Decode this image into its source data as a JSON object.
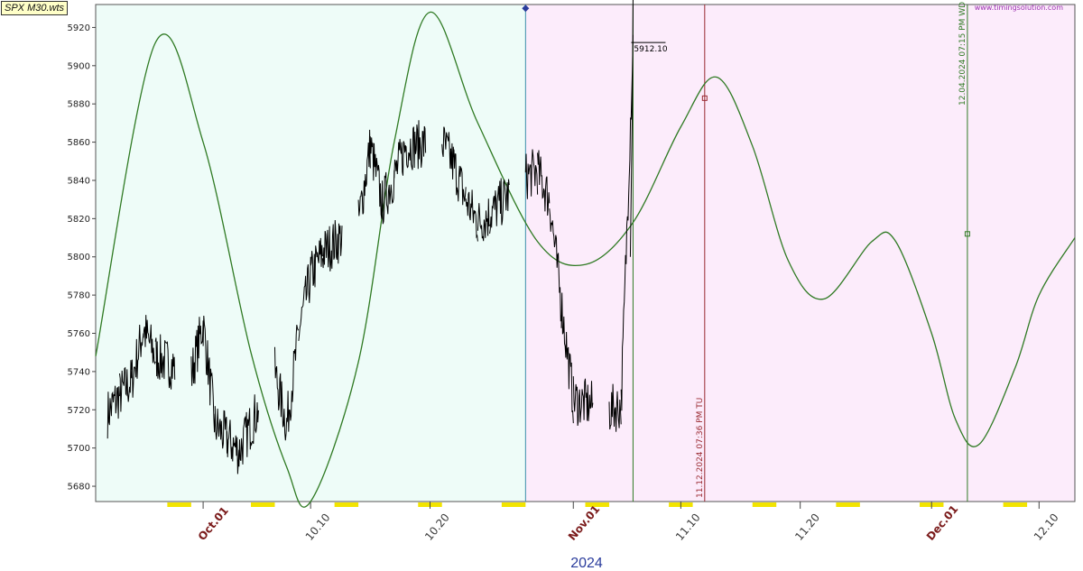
{
  "symbol_tag": "SPX M30.wts",
  "brand": "www.timingsolution.com",
  "colors": {
    "zone_past": "#eefcf8",
    "zone_future": "#fcecfb",
    "price": "#000000",
    "projection": "#2f7a23",
    "mark_red": "#9a2a32",
    "mark_green": "#2f7a23",
    "mark_teal": "#3a8ca8",
    "highlight": "#f2e400"
  },
  "chart_data": {
    "type": "line",
    "title": "",
    "xlabel": "2024",
    "ylabel": "",
    "ylim": [
      5672,
      5932
    ],
    "xlim": [
      "2024-09-22",
      "2024-12-13"
    ],
    "yticks": [
      5680,
      5700,
      5720,
      5740,
      5760,
      5780,
      5800,
      5820,
      5840,
      5860,
      5880,
      5900,
      5920
    ],
    "xticks": [
      {
        "date": "2024-10-01",
        "label": "Oct.01",
        "month": true
      },
      {
        "date": "2024-10-10",
        "label": "10.10",
        "month": false
      },
      {
        "date": "2024-10-20",
        "label": "10.20",
        "month": false
      },
      {
        "date": "2024-11-01",
        "label": "Nov.01",
        "month": true
      },
      {
        "date": "2024-11-10",
        "label": "11.10",
        "month": false
      },
      {
        "date": "2024-11-20",
        "label": "11.20",
        "month": false
      },
      {
        "date": "2024-12-01",
        "label": "Dec.01",
        "month": true
      },
      {
        "date": "2024-12-10",
        "label": "12.10",
        "month": false
      }
    ],
    "series": [
      {
        "kind": "price",
        "points": [
          [
            "2024-09-23",
            5718
          ],
          [
            "2024-09-24",
            5728
          ],
          [
            "2024-09-25",
            5735
          ],
          [
            "2024-09-26",
            5762
          ],
          [
            "2024-09-27",
            5748
          ],
          [
            "2024-09-30",
            5738
          ],
          [
            "2024-10-01",
            5765
          ],
          [
            "2024-10-02",
            5712
          ],
          [
            "2024-10-03",
            5705
          ],
          [
            "2024-10-04",
            5698
          ],
          [
            "2024-10-07",
            5740
          ],
          [
            "2024-10-08",
            5712
          ],
          [
            "2024-10-09",
            5760
          ],
          [
            "2024-10-10",
            5790
          ],
          [
            "2024-10-11",
            5802
          ],
          [
            "2024-10-14",
            5818
          ],
          [
            "2024-10-15",
            5858
          ],
          [
            "2024-10-16",
            5828
          ],
          [
            "2024-10-17",
            5842
          ],
          [
            "2024-10-18",
            5858
          ],
          [
            "2024-10-21",
            5860
          ],
          [
            "2024-10-22",
            5848
          ],
          [
            "2024-10-23",
            5830
          ],
          [
            "2024-10-24",
            5818
          ],
          [
            "2024-10-25",
            5822
          ],
          [
            "2024-10-28",
            5842
          ],
          [
            "2024-10-29",
            5845
          ],
          [
            "2024-10-30",
            5830
          ],
          [
            "2024-10-31",
            5775
          ],
          [
            "2024-11-01",
            5725
          ],
          [
            "2024-11-04",
            5720
          ],
          [
            "2024-11-05",
            5722
          ],
          [
            "2024-11-06",
            5912.1
          ]
        ]
      },
      {
        "kind": "projection",
        "points": [
          [
            "2024-09-22",
            5748
          ],
          [
            "2024-09-27",
            5912
          ],
          [
            "2024-10-01",
            5860
          ],
          [
            "2024-10-05",
            5750
          ],
          [
            "2024-10-08",
            5690
          ],
          [
            "2024-10-10",
            5672
          ],
          [
            "2024-10-14",
            5745
          ],
          [
            "2024-10-17",
            5860
          ],
          [
            "2024-10-20",
            5928
          ],
          [
            "2024-10-24",
            5870
          ],
          [
            "2024-10-29",
            5808
          ],
          [
            "2024-11-02",
            5796
          ],
          [
            "2024-11-06",
            5818
          ],
          [
            "2024-11-10",
            5868
          ],
          [
            "2024-11-13",
            5894
          ],
          [
            "2024-11-16",
            5858
          ],
          [
            "2024-11-19",
            5798
          ],
          [
            "2024-11-22",
            5778
          ],
          [
            "2024-11-26",
            5808
          ],
          [
            "2024-11-28",
            5808
          ],
          [
            "2024-12-01",
            5760
          ],
          [
            "2024-12-03",
            5715
          ],
          [
            "2024-12-05",
            5702
          ],
          [
            "2024-12-08",
            5742
          ],
          [
            "2024-12-10",
            5780
          ],
          [
            "2024-12-13",
            5810
          ]
        ]
      }
    ],
    "annotations": {
      "last_price_label": "5912.10",
      "last_price": 5912.1,
      "start_marker": {
        "date": "2024-10-28",
        "value": 5930
      },
      "vlines": [
        {
          "date": "2024-10-28",
          "color": "teal",
          "label": ""
        },
        {
          "date": "2024-11-06",
          "color": "green",
          "label": ""
        },
        {
          "date": "2024-11-12",
          "color": "red",
          "label": "11.12.2024  07:36 PM TU",
          "marker_value": 5883
        },
        {
          "date": "2024-12-04",
          "color": "green",
          "label": "12.04.2024  07:15 PM WD",
          "marker_value": 5812
        }
      ],
      "highlight_ranges": [
        [
          "2024-09-28",
          "2024-09-30"
        ],
        [
          "2024-10-05",
          "2024-10-07"
        ],
        [
          "2024-10-12",
          "2024-10-14"
        ],
        [
          "2024-10-19",
          "2024-10-21"
        ],
        [
          "2024-10-26",
          "2024-10-28"
        ],
        [
          "2024-11-02",
          "2024-11-04"
        ],
        [
          "2024-11-09",
          "2024-11-11"
        ],
        [
          "2024-11-16",
          "2024-11-18"
        ],
        [
          "2024-11-23",
          "2024-11-25"
        ],
        [
          "2024-11-30",
          "2024-12-02"
        ],
        [
          "2024-12-07",
          "2024-12-09"
        ]
      ]
    }
  }
}
